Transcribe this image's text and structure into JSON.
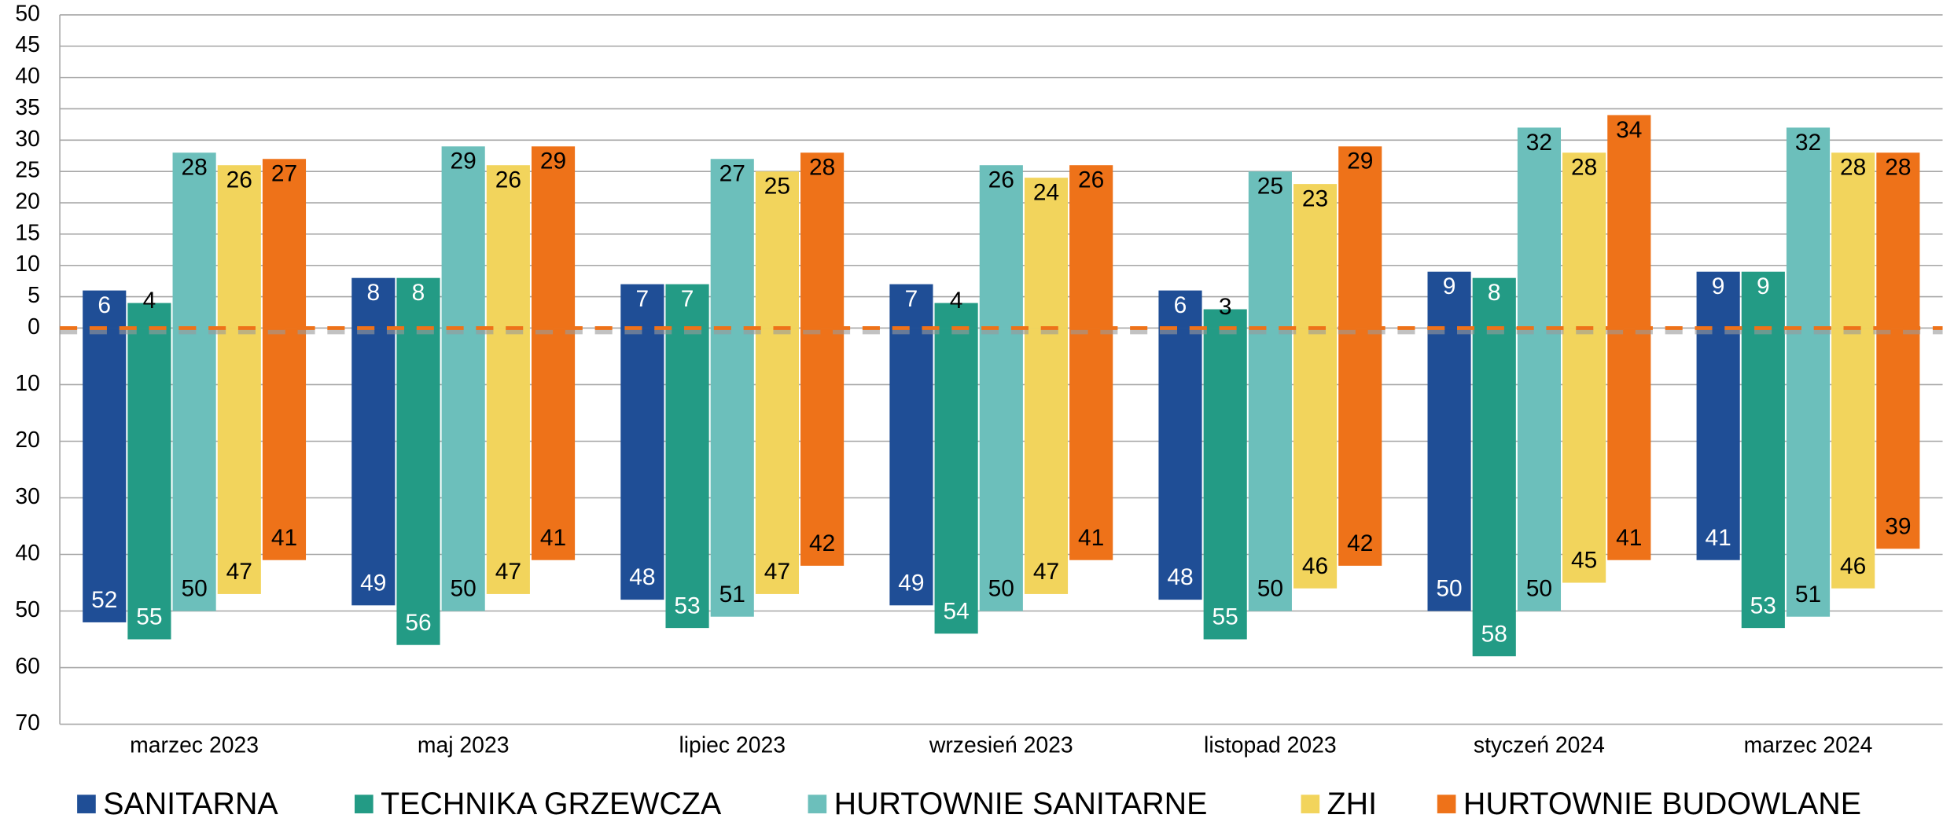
{
  "chart_data": {
    "type": "bar",
    "categories": [
      "marzec 2023",
      "maj 2023",
      "lipiec 2023",
      "wrzesień 2023",
      "listopad 2023",
      "styczeń 2024",
      "marzec 2024"
    ],
    "ylim": [
      0,
      50
    ],
    "yticks": [
      0,
      5,
      10,
      15,
      20,
      25,
      30,
      35,
      40,
      45,
      50
    ],
    "y2lim": [
      0,
      70
    ],
    "y2ticks": [
      10,
      20,
      30,
      40,
      50,
      60,
      70
    ],
    "grid": true,
    "legend": "bottom",
    "series": [
      {
        "name": "SANITARNA",
        "color": "#1f4e96",
        "values": [
          6,
          8,
          7,
          7,
          6,
          9,
          9
        ],
        "values_y2": [
          52,
          49,
          48,
          49,
          48,
          50,
          41
        ]
      },
      {
        "name": "TECHNIKA GRZEWCZA",
        "color": "#239b85",
        "values": [
          4,
          8,
          7,
          4,
          3,
          8,
          9
        ],
        "values_y2": [
          55,
          56,
          53,
          54,
          55,
          58,
          53
        ]
      },
      {
        "name": "HURTOWNIE SANITARNE",
        "color": "#6cbfbb",
        "values": [
          28,
          29,
          27,
          26,
          25,
          32,
          32
        ],
        "values_y2": [
          50,
          50,
          51,
          50,
          50,
          50,
          51
        ]
      },
      {
        "name": "ZHI",
        "color": "#f2d45c",
        "values": [
          26,
          26,
          25,
          24,
          23,
          28,
          28
        ],
        "values_y2": [
          47,
          47,
          47,
          47,
          46,
          45,
          46
        ]
      },
      {
        "name": "HURTOWNIE BUDOWLANE",
        "color": "#ee7219",
        "values": [
          27,
          29,
          28,
          26,
          29,
          34,
          28
        ],
        "values_y2": [
          41,
          41,
          42,
          41,
          42,
          41,
          39
        ]
      }
    ]
  }
}
